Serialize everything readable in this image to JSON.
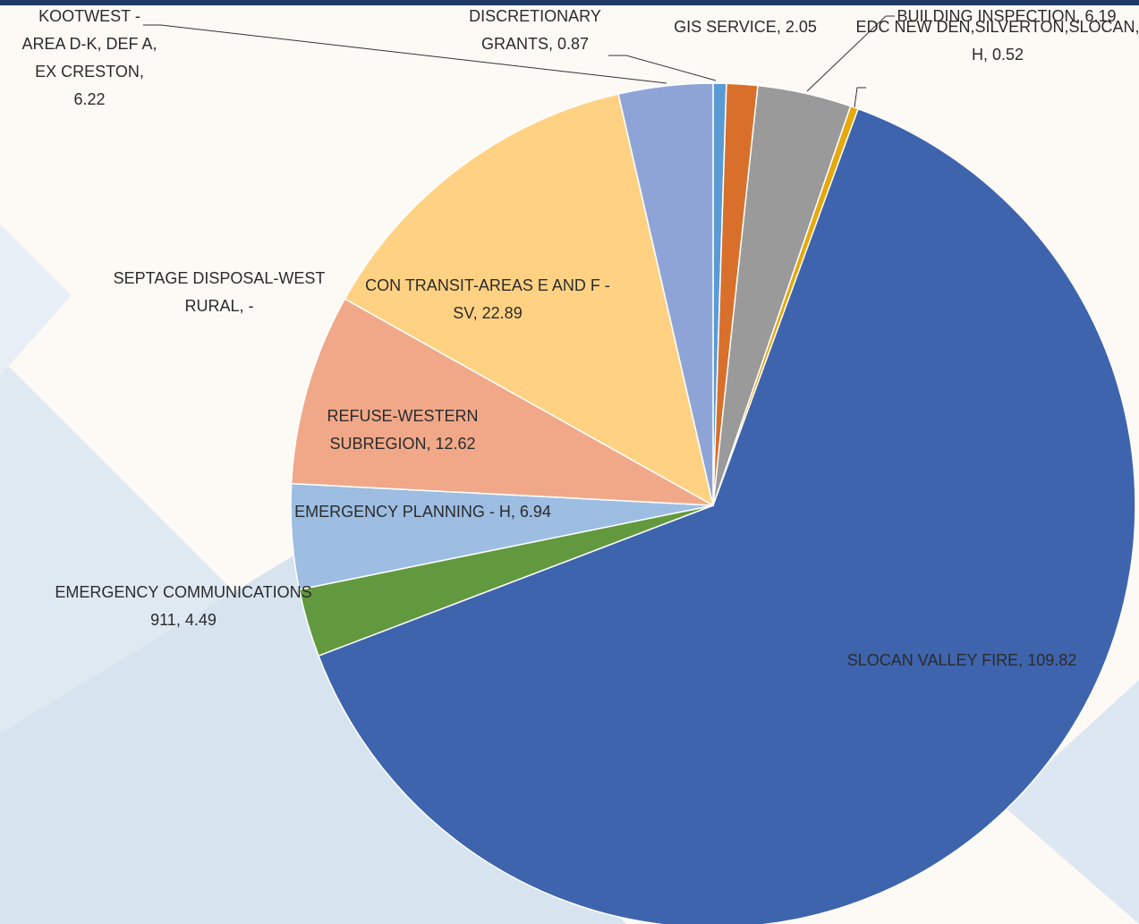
{
  "chart_data": {
    "type": "pie",
    "label_separator": ", ",
    "categories": [
      "DISCRETIONARY GRANTS",
      "GIS SERVICE",
      "BUILDING INSPECTION",
      "EDC NEW DEN,SILVERTON,SLOCAN, H",
      "SLOCAN VALLEY FIRE",
      "EMERGENCY COMMUNICATIONS 911",
      "EMERGENCY PLANNING - H",
      "SEPTAGE DISPOSAL-WEST RURAL",
      "REFUSE-WESTERN SUBREGION",
      "CON TRANSIT-AREAS E AND F - SV",
      "KOOTWEST - AREA D-K, DEF A, EX CRESTON"
    ],
    "values": [
      0.87,
      2.05,
      6.19,
      0.52,
      109.82,
      4.49,
      6.94,
      0,
      12.62,
      22.89,
      6.22
    ],
    "value_labels": [
      "0.87",
      "2.05",
      "6.19",
      "0.52",
      "109.82",
      "4.49",
      "6.94",
      "-",
      "12.62",
      "22.89",
      "6.22"
    ],
    "colors": [
      "#5b9bd5",
      "#d8702c",
      "#9a9a9a",
      "#e6a80c",
      "#3e64ad",
      "#62993e",
      "#9dbde2",
      "#7a8fc8",
      "#f0a889",
      "#ffd283",
      "#8fa4d6"
    ]
  }
}
